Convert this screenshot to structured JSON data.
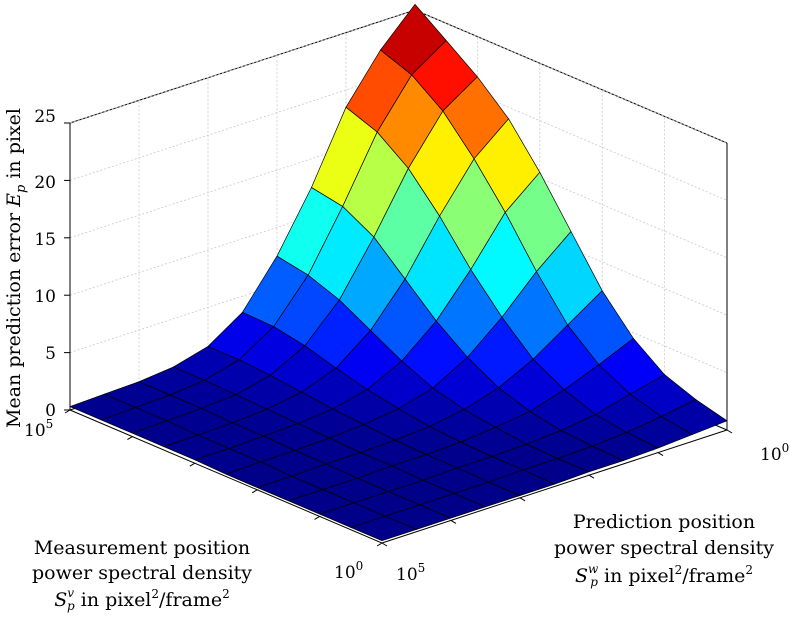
{
  "chart_data": {
    "type": "surface",
    "zlabel": "Mean prediction error E_p in pixel",
    "zlabel_text": {
      "pre": "Mean prediction error ",
      "sym": "E",
      "sub": "p",
      "post": " in pixel"
    },
    "zlim": [
      0,
      25
    ],
    "zticks": [
      "0",
      "5",
      "10",
      "15",
      "20",
      "25"
    ],
    "x_axis": {
      "name": "Prediction position power spectral density",
      "lines": [
        "Prediction position",
        "power spectral density"
      ],
      "line3": {
        "sym": "S",
        "sup": "w",
        "sub": "p",
        "text": " in pixel",
        "exp1": "2",
        "mid": "/frame",
        "exp2": "2"
      },
      "scale": "log",
      "tick_labels": {
        "start": "10",
        "start_exp": "5",
        "end": "10",
        "end_exp": "0"
      }
    },
    "y_axis": {
      "name": "Measurement position power spectral density",
      "lines": [
        "Measurement position",
        "power spectral density"
      ],
      "line3": {
        "sym": "S",
        "sup": "v",
        "sub": "p",
        "text": " in pixel",
        "exp1": "2",
        "mid": "/frame",
        "exp2": "2"
      },
      "scale": "log",
      "tick_labels": {
        "start": "10",
        "start_exp": "5",
        "end": "10",
        "end_exp": "0"
      }
    },
    "grid": true,
    "colormap": "jet",
    "grid_size": [
      11,
      11
    ],
    "z": [
      [
        0.8,
        0.6,
        0.4,
        0.3,
        0.3,
        0.2,
        0.2,
        0.2,
        0.2,
        0.2,
        0.2
      ],
      [
        1.5,
        1.0,
        0.6,
        0.4,
        0.3,
        0.3,
        0.2,
        0.2,
        0.2,
        0.2,
        0.2
      ],
      [
        2.5,
        1.8,
        1.0,
        0.6,
        0.4,
        0.3,
        0.3,
        0.2,
        0.2,
        0.2,
        0.2
      ],
      [
        4.5,
        3.2,
        2.0,
        1.1,
        0.7,
        0.4,
        0.3,
        0.3,
        0.2,
        0.2,
        0.2
      ],
      [
        7.5,
        5.5,
        3.5,
        2.0,
        1.1,
        0.6,
        0.4,
        0.3,
        0.3,
        0.2,
        0.2
      ],
      [
        11.5,
        9.0,
        6.0,
        3.5,
        1.8,
        1.0,
        0.6,
        0.4,
        0.3,
        0.3,
        0.2
      ],
      [
        15.5,
        13.0,
        9.0,
        5.5,
        3.0,
        1.5,
        0.8,
        0.5,
        0.4,
        0.3,
        0.3
      ],
      [
        19.0,
        16.5,
        12.5,
        8.0,
        4.5,
        2.2,
        1.1,
        0.6,
        0.4,
        0.3,
        0.3
      ],
      [
        21.5,
        19.5,
        15.5,
        10.5,
        6.0,
        3.0,
        1.4,
        0.7,
        0.5,
        0.4,
        0.3
      ],
      [
        23.5,
        21.5,
        17.5,
        12.0,
        7.0,
        3.5,
        1.6,
        0.8,
        0.5,
        0.4,
        0.3
      ],
      [
        25.5,
        22.5,
        18.5,
        12.5,
        7.5,
        3.6,
        1.6,
        0.8,
        0.5,
        0.4,
        0.3
      ]
    ]
  }
}
